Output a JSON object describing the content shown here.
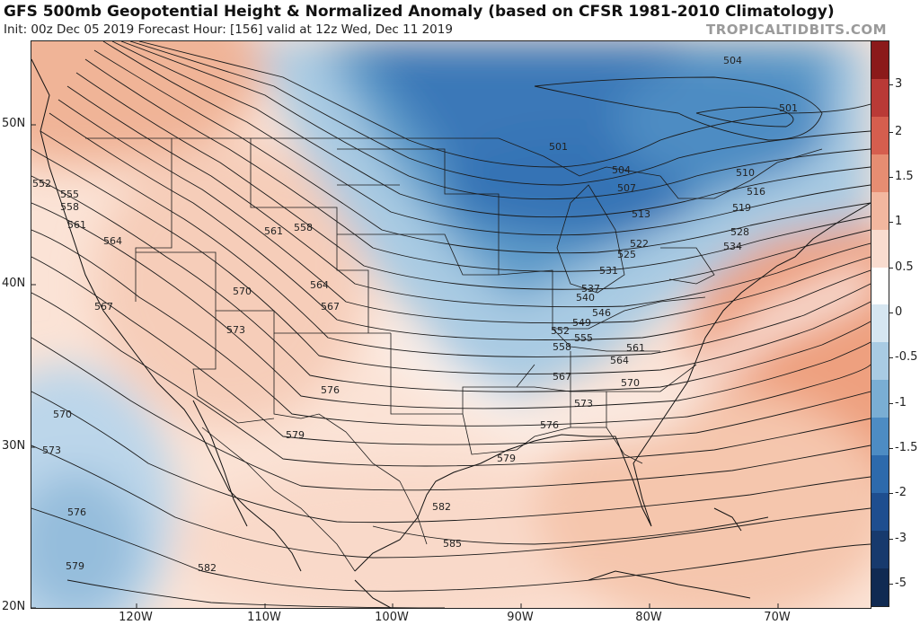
{
  "title": "GFS 500mb Geopotential Height & Normalized Anomaly (based on CFSR 1981-2010 Climatology)",
  "subtitle": "Init: 00z Dec 05 2019   Forecast Hour: [156]   valid at 12z Wed, Dec 11 2019",
  "brand": "TROPICALTIDBITS.COM",
  "lat_labels": [
    "50N",
    "40N",
    "30N",
    "20N"
  ],
  "lon_labels": [
    "120W",
    "110W",
    "100W",
    "90W",
    "80W",
    "70W"
  ],
  "colorbar": {
    "ticks": [
      "3",
      "2",
      "1.5",
      "1",
      "0.5",
      "0",
      "-0.5",
      "-1",
      "-1.5",
      "-2",
      "-3",
      "-5"
    ],
    "colors": [
      "#8b1a1a",
      "#b93a36",
      "#d55e4e",
      "#e68d72",
      "#f2b79f",
      "#f9dccf",
      "#ffffff",
      "#d6e6f1",
      "#a9cbe3",
      "#7aaed3",
      "#4d8cc3",
      "#2d6aac",
      "#1e4e8f",
      "#173a6d",
      "#102a52"
    ]
  },
  "contours": [
    {
      "label": "504"
    },
    {
      "label": "501"
    },
    {
      "label": "510"
    },
    {
      "label": "516"
    },
    {
      "label": "519"
    },
    {
      "label": "528"
    },
    {
      "label": "534"
    },
    {
      "label": "501"
    },
    {
      "label": "504"
    },
    {
      "label": "507"
    },
    {
      "label": "513"
    },
    {
      "label": "522"
    },
    {
      "label": "525"
    },
    {
      "label": "531"
    },
    {
      "label": "537"
    },
    {
      "label": "540"
    },
    {
      "label": "546"
    },
    {
      "label": "549"
    },
    {
      "label": "552"
    },
    {
      "label": "555"
    },
    {
      "label": "558"
    },
    {
      "label": "561"
    },
    {
      "label": "564"
    },
    {
      "label": "567"
    },
    {
      "label": "570"
    },
    {
      "label": "573"
    },
    {
      "label": "576"
    },
    {
      "label": "579"
    },
    {
      "label": "582"
    },
    {
      "label": "585"
    },
    {
      "label": "552"
    },
    {
      "label": "555"
    },
    {
      "label": "558"
    },
    {
      "label": "561"
    },
    {
      "label": "564"
    },
    {
      "label": "567"
    },
    {
      "label": "561"
    },
    {
      "label": "558"
    },
    {
      "label": "564"
    },
    {
      "label": "567"
    },
    {
      "label": "570"
    },
    {
      "label": "573"
    },
    {
      "label": "576"
    },
    {
      "label": "579"
    },
    {
      "label": "570"
    },
    {
      "label": "573"
    },
    {
      "label": "576"
    },
    {
      "label": "579"
    },
    {
      "label": "582"
    }
  ]
}
